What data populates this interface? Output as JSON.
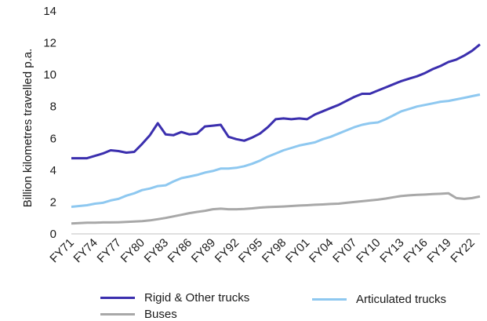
{
  "chart_data": {
    "type": "line",
    "title": "",
    "xlabel": "",
    "ylabel": "Billion kilometres travelled p.a.",
    "ylim": [
      0,
      14
    ],
    "yticks": [
      0,
      2,
      4,
      6,
      8,
      10,
      12,
      14
    ],
    "grid": false,
    "legend_position": "bottom",
    "x": [
      1971,
      1972,
      1973,
      1974,
      1975,
      1976,
      1977,
      1978,
      1979,
      1980,
      1981,
      1982,
      1983,
      1984,
      1985,
      1986,
      1987,
      1988,
      1989,
      1990,
      1991,
      1992,
      1993,
      1994,
      1995,
      1996,
      1997,
      1998,
      1999,
      2000,
      2001,
      2002,
      2003,
      2004,
      2005,
      2006,
      2007,
      2008,
      2009,
      2010,
      2011,
      2012,
      2013,
      2014,
      2015,
      2016,
      2017,
      2018,
      2019,
      2020,
      2021,
      2022,
      2023
    ],
    "x_tick_labels": [
      "FY71",
      "FY74",
      "FY77",
      "FY80",
      "FY83",
      "FY86",
      "FY89",
      "FY92",
      "FY95",
      "FY98",
      "FY01",
      "FY04",
      "FY07",
      "FY10",
      "FY13",
      "FY16",
      "FY19",
      "FY22"
    ],
    "x_tick_years": [
      1971,
      1974,
      1977,
      1980,
      1983,
      1986,
      1989,
      1992,
      1995,
      1998,
      2001,
      2004,
      2007,
      2010,
      2013,
      2016,
      2019,
      2022
    ],
    "series": [
      {
        "name": "Rigid & Other trucks",
        "color": "#3b2fae",
        "values": [
          4.75,
          4.75,
          4.75,
          4.9,
          5.05,
          5.25,
          5.2,
          5.1,
          5.15,
          5.65,
          6.2,
          6.95,
          6.25,
          6.2,
          6.4,
          6.25,
          6.3,
          6.75,
          6.8,
          6.85,
          6.1,
          5.95,
          5.85,
          6.05,
          6.3,
          6.7,
          7.2,
          7.25,
          7.2,
          7.25,
          7.2,
          7.5,
          7.7,
          7.9,
          8.1,
          8.35,
          8.6,
          8.8,
          8.8,
          9.0,
          9.2,
          9.4,
          9.6,
          9.75,
          9.9,
          10.1,
          10.35,
          10.55,
          10.8,
          10.95,
          11.2,
          11.5,
          11.9
        ]
      },
      {
        "name": "Articulated trucks",
        "color": "#8ec8f0",
        "values": [
          1.7,
          1.75,
          1.8,
          1.9,
          1.95,
          2.1,
          2.2,
          2.4,
          2.55,
          2.75,
          2.85,
          3.0,
          3.05,
          3.3,
          3.5,
          3.6,
          3.7,
          3.85,
          3.95,
          4.1,
          4.1,
          4.15,
          4.25,
          4.4,
          4.6,
          4.85,
          5.05,
          5.25,
          5.4,
          5.55,
          5.65,
          5.75,
          5.95,
          6.1,
          6.3,
          6.5,
          6.7,
          6.85,
          6.95,
          7.0,
          7.2,
          7.45,
          7.7,
          7.85,
          8.0,
          8.1,
          8.2,
          8.3,
          8.35,
          8.45,
          8.55,
          8.65,
          8.75
        ]
      },
      {
        "name": "Buses",
        "color": "#a8a8a8",
        "values": [
          0.65,
          0.68,
          0.7,
          0.7,
          0.72,
          0.72,
          0.73,
          0.75,
          0.78,
          0.8,
          0.85,
          0.92,
          1.0,
          1.1,
          1.2,
          1.3,
          1.38,
          1.45,
          1.55,
          1.58,
          1.55,
          1.55,
          1.57,
          1.6,
          1.65,
          1.68,
          1.7,
          1.72,
          1.75,
          1.78,
          1.8,
          1.83,
          1.85,
          1.88,
          1.9,
          1.95,
          2.0,
          2.05,
          2.1,
          2.15,
          2.22,
          2.3,
          2.38,
          2.42,
          2.45,
          2.47,
          2.5,
          2.52,
          2.55,
          2.25,
          2.2,
          2.25,
          2.35
        ]
      }
    ]
  }
}
